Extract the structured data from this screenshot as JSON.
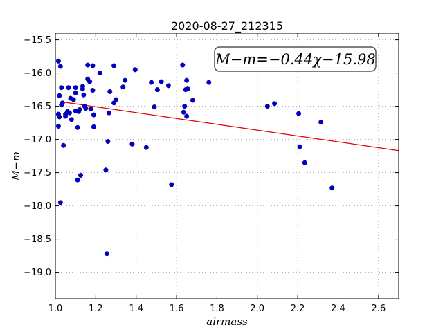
{
  "chart_data": {
    "type": "scatter",
    "title": "2020-08-27_212315",
    "xlabel": "airmass",
    "ylabel": "M−m",
    "xlim": [
      1.0,
      2.7
    ],
    "ylim": [
      -19.4,
      -15.4
    ],
    "grid": true,
    "xticks": [
      1.0,
      1.2,
      1.4,
      1.6,
      1.8,
      2.0,
      2.2,
      2.4,
      2.6
    ],
    "xtick_labels": [
      "1.0",
      "1.2",
      "1.4",
      "1.6",
      "1.8",
      "2.0",
      "2.2",
      "2.4",
      "2.6"
    ],
    "yticks": [
      -15.5,
      -16.0,
      -16.5,
      -17.0,
      -17.5,
      -18.0,
      -18.5,
      -19.0
    ],
    "ytick_labels": [
      "−15.5",
      "−16.0",
      "−16.5",
      "−17.0",
      "−17.5",
      "−18.0",
      "−18.5",
      "−19.0"
    ],
    "annotation": "M−m=−0.44χ−15.98",
    "colors": {
      "points": "#0000cc",
      "fit": "#dd0000",
      "grid": "#999999"
    },
    "fit": {
      "slope": -0.44,
      "intercept": -15.98
    },
    "points": [
      [
        1.015,
        -15.82
      ],
      [
        1.025,
        -15.9
      ],
      [
        1.02,
        -16.34
      ],
      [
        1.03,
        -16.48
      ],
      [
        1.015,
        -16.62
      ],
      [
        1.02,
        -16.66
      ],
      [
        1.03,
        -16.22
      ],
      [
        1.035,
        -16.45
      ],
      [
        1.04,
        -17.09
      ],
      [
        1.025,
        -17.95
      ],
      [
        1.015,
        -16.8
      ],
      [
        1.05,
        -16.62
      ],
      [
        1.06,
        -16.58
      ],
      [
        1.05,
        -16.65
      ],
      [
        1.07,
        -16.6
      ],
      [
        1.065,
        -16.22
      ],
      [
        1.08,
        -16.7
      ],
      [
        1.075,
        -16.38
      ],
      [
        1.09,
        -16.4
      ],
      [
        1.1,
        -16.3
      ],
      [
        1.1,
        -16.22
      ],
      [
        1.1,
        -16.57
      ],
      [
        1.115,
        -16.58
      ],
      [
        1.12,
        -16.55
      ],
      [
        1.11,
        -16.82
      ],
      [
        1.11,
        -17.61
      ],
      [
        1.125,
        -17.54
      ],
      [
        1.135,
        -16.2
      ],
      [
        1.135,
        -16.24
      ],
      [
        1.14,
        -16.33
      ],
      [
        1.145,
        -16.5
      ],
      [
        1.15,
        -16.53
      ],
      [
        1.16,
        -16.09
      ],
      [
        1.16,
        -15.88
      ],
      [
        1.17,
        -16.13
      ],
      [
        1.175,
        -16.54
      ],
      [
        1.185,
        -15.89
      ],
      [
        1.185,
        -16.26
      ],
      [
        1.19,
        -16.63
      ],
      [
        1.19,
        -16.81
      ],
      [
        1.22,
        -16.0
      ],
      [
        1.25,
        -17.46
      ],
      [
        1.255,
        -18.72
      ],
      [
        1.26,
        -17.03
      ],
      [
        1.265,
        -16.6
      ],
      [
        1.27,
        -16.28
      ],
      [
        1.29,
        -15.89
      ],
      [
        1.29,
        -16.45
      ],
      [
        1.3,
        -16.4
      ],
      [
        1.335,
        -16.21
      ],
      [
        1.345,
        -16.11
      ],
      [
        1.38,
        -17.07
      ],
      [
        1.395,
        -15.95
      ],
      [
        1.45,
        -17.12
      ],
      [
        1.475,
        -16.14
      ],
      [
        1.49,
        -16.51
      ],
      [
        1.505,
        -16.25
      ],
      [
        1.525,
        -16.13
      ],
      [
        1.56,
        -16.19
      ],
      [
        1.575,
        -17.68
      ],
      [
        1.63,
        -15.88
      ],
      [
        1.635,
        -16.59
      ],
      [
        1.64,
        -16.5
      ],
      [
        1.645,
        -16.25
      ],
      [
        1.65,
        -16.11
      ],
      [
        1.65,
        -16.65
      ],
      [
        1.655,
        -16.24
      ],
      [
        1.68,
        -16.41
      ],
      [
        1.76,
        -16.14
      ],
      [
        2.05,
        -16.5
      ],
      [
        2.085,
        -16.46
      ],
      [
        2.205,
        -16.61
      ],
      [
        2.21,
        -17.11
      ],
      [
        2.235,
        -17.35
      ],
      [
        2.315,
        -16.74
      ],
      [
        2.37,
        -17.73
      ]
    ]
  }
}
